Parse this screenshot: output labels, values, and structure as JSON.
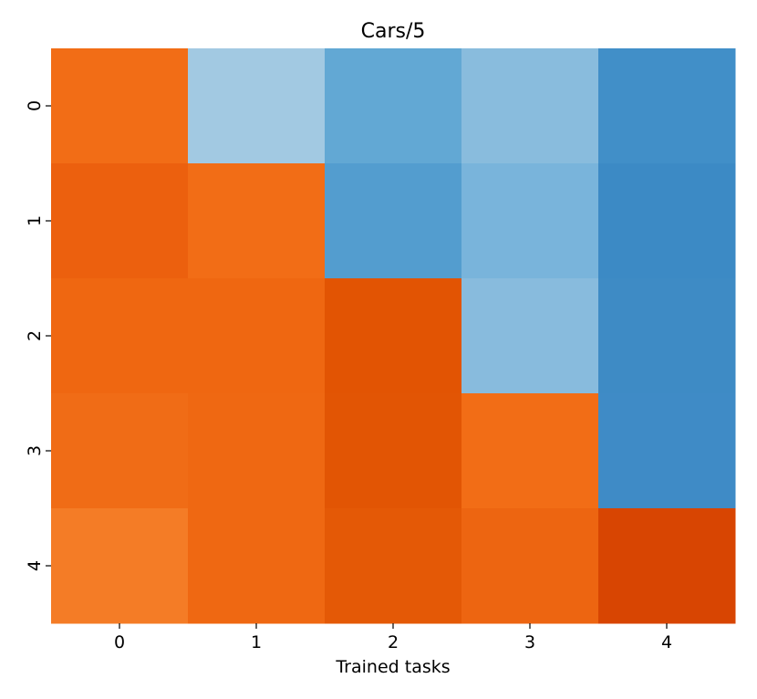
{
  "chart_data": {
    "type": "heatmap",
    "title": "Cars/5",
    "xlabel": "Trained tasks",
    "ylabel": "",
    "x_ticks": [
      "0",
      "1",
      "2",
      "3",
      "4"
    ],
    "y_ticks": [
      "0",
      "1",
      "2",
      "3",
      "4"
    ],
    "colorbar": false,
    "cell_colors": [
      [
        "#f26d16",
        "#a2c9e2",
        "#62a8d4",
        "#89bcdd",
        "#418fc8"
      ],
      [
        "#ec600e",
        "#f26d16",
        "#539dcf",
        "#79b4db",
        "#3c8ac5"
      ],
      [
        "#ef6711",
        "#ef6711",
        "#e25403",
        "#88bbdd",
        "#3e8bc5"
      ],
      [
        "#f06c16",
        "#ef6812",
        "#e25504",
        "#f26d16",
        "#3f8bc6"
      ],
      [
        "#f47c26",
        "#ef6812",
        "#e45906",
        "#ed6511",
        "#d84502"
      ]
    ]
  }
}
